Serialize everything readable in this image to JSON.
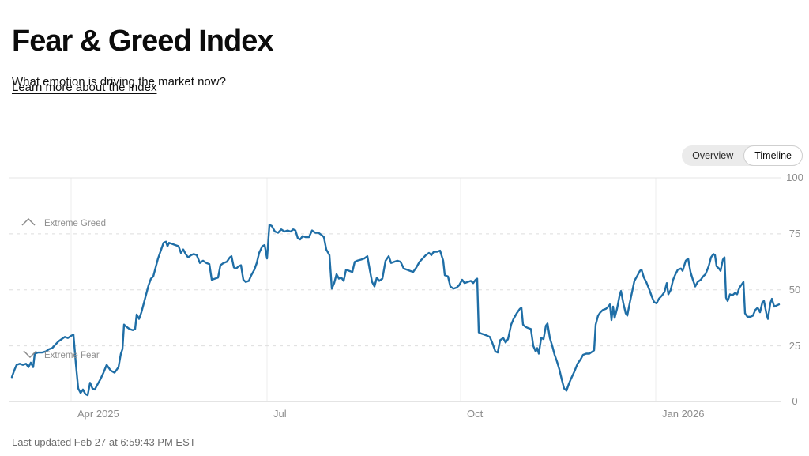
{
  "header": {
    "title": "Fear & Greed Index",
    "subtitle": "What emotion is driving the market now?",
    "link": "Learn more about the index"
  },
  "view_toggle": {
    "options": [
      {
        "label": "Overview",
        "selected": false
      },
      {
        "label": "Timeline",
        "selected": true
      }
    ]
  },
  "footer": {
    "last_updated": "Last updated Feb 27 at 6:59:43 PM EST"
  },
  "colors": {
    "line": "#1f6ea6",
    "grid": "#e4e4e4",
    "tick_text": "#8d8d8d",
    "toggle_bg": "#ebebeb"
  },
  "chart_data": {
    "type": "line",
    "title": "Fear & Greed Index timeline",
    "series_name": "Fear & Greed Index",
    "ylim": [
      0,
      100
    ],
    "y_ticks": [
      100,
      75,
      50,
      25,
      0
    ],
    "x_ticks": [
      "Apr 2025",
      "Jul",
      "Oct",
      "Jan 2026"
    ],
    "band_labels": [
      {
        "label": "Extreme Greed",
        "value": 75,
        "icon": "chevron-up"
      },
      {
        "label": "Extreme Fear",
        "value": 25,
        "icon": "chevron-down"
      }
    ],
    "grid": "horizontal solid at 0 and 100, dashed at 25/50/75, vertical solid at month ticks",
    "legend": "none",
    "x_unit": "px across plot (Mar 2025 - Feb 27 2026, daily)",
    "value_unit": "index 0-100",
    "points": [
      [
        15,
        11
      ],
      [
        18,
        14
      ],
      [
        21,
        16.5
      ],
      [
        25,
        17
      ],
      [
        29,
        16.5
      ],
      [
        33,
        17
      ],
      [
        36,
        15.5
      ],
      [
        39,
        17.5
      ],
      [
        42,
        15.5
      ],
      [
        44,
        21.5
      ],
      [
        48,
        22
      ],
      [
        53,
        22
      ],
      [
        58,
        22.5
      ],
      [
        62,
        23.5
      ],
      [
        66,
        24
      ],
      [
        70,
        25.5
      ],
      [
        74,
        27
      ],
      [
        78,
        28
      ],
      [
        82,
        29
      ],
      [
        86,
        28.5
      ],
      [
        90,
        29.5
      ],
      [
        93,
        30
      ],
      [
        96,
        17
      ],
      [
        99,
        6
      ],
      [
        102,
        4
      ],
      [
        105,
        5.5
      ],
      [
        108,
        3.5
      ],
      [
        111,
        3
      ],
      [
        114,
        8.5
      ],
      [
        117,
        6
      ],
      [
        120,
        5.5
      ],
      [
        123,
        7.5
      ],
      [
        127,
        10
      ],
      [
        131,
        13
      ],
      [
        135,
        16.5
      ],
      [
        140,
        14
      ],
      [
        145,
        13
      ],
      [
        150,
        15.5
      ],
      [
        153,
        21.5
      ],
      [
        155,
        23.5
      ],
      [
        157,
        34.5
      ],
      [
        160,
        33.5
      ],
      [
        164,
        32.5
      ],
      [
        168,
        32
      ],
      [
        171,
        32.5
      ],
      [
        173,
        39
      ],
      [
        176,
        37
      ],
      [
        179,
        40
      ],
      [
        182,
        44
      ],
      [
        185,
        48
      ],
      [
        188,
        52
      ],
      [
        191,
        55
      ],
      [
        194,
        56
      ],
      [
        197,
        60
      ],
      [
        200,
        64
      ],
      [
        204,
        68
      ],
      [
        207,
        71
      ],
      [
        210,
        71.5
      ],
      [
        212,
        69.5
      ],
      [
        214,
        71
      ],
      [
        218,
        70.5
      ],
      [
        222,
        70
      ],
      [
        226,
        69.5
      ],
      [
        229,
        66.5
      ],
      [
        232,
        68
      ],
      [
        235,
        66
      ],
      [
        238,
        64.5
      ],
      [
        242,
        65.5
      ],
      [
        245,
        66
      ],
      [
        249,
        65.5
      ],
      [
        253,
        62
      ],
      [
        257,
        63
      ],
      [
        261,
        62
      ],
      [
        265,
        61.5
      ],
      [
        268,
        54.5
      ],
      [
        272,
        55
      ],
      [
        276,
        55.5
      ],
      [
        279,
        61
      ],
      [
        283,
        62
      ],
      [
        287,
        62.5
      ],
      [
        291,
        64.5
      ],
      [
        293,
        65
      ],
      [
        296,
        60
      ],
      [
        299,
        59.5
      ],
      [
        302,
        60.5
      ],
      [
        305,
        61
      ],
      [
        308,
        54.5
      ],
      [
        311,
        53.5
      ],
      [
        315,
        54
      ],
      [
        318,
        56.5
      ],
      [
        322,
        59
      ],
      [
        325,
        62
      ],
      [
        328,
        66.5
      ],
      [
        332,
        69.5
      ],
      [
        335,
        70
      ],
      [
        338,
        64
      ],
      [
        341,
        79
      ],
      [
        344,
        78.5
      ],
      [
        348,
        76
      ],
      [
        352,
        75.5
      ],
      [
        356,
        77
      ],
      [
        360,
        76
      ],
      [
        364,
        76.5
      ],
      [
        368,
        76
      ],
      [
        371,
        77
      ],
      [
        374,
        76.5
      ],
      [
        377,
        73
      ],
      [
        380,
        72.5
      ],
      [
        383,
        74
      ],
      [
        387,
        73.5
      ],
      [
        391,
        73.5
      ],
      [
        395,
        76.5
      ],
      [
        399,
        75.5
      ],
      [
        403,
        75.5
      ],
      [
        407,
        74.5
      ],
      [
        410,
        73.5
      ],
      [
        413,
        68
      ],
      [
        417,
        65.5
      ],
      [
        420,
        50.5
      ],
      [
        423,
        53
      ],
      [
        426,
        57
      ],
      [
        429,
        55
      ],
      [
        432,
        55.5
      ],
      [
        435,
        54
      ],
      [
        438,
        59
      ],
      [
        442,
        58.5
      ],
      [
        446,
        58
      ],
      [
        449,
        62.5
      ],
      [
        452,
        63
      ],
      [
        457,
        63.5
      ],
      [
        461,
        64
      ],
      [
        465,
        65
      ],
      [
        468,
        59
      ],
      [
        471,
        53.5
      ],
      [
        474,
        51.5
      ],
      [
        477,
        55.5
      ],
      [
        480,
        54
      ],
      [
        484,
        55
      ],
      [
        488,
        63
      ],
      [
        492,
        65
      ],
      [
        495,
        62
      ],
      [
        499,
        62.5
      ],
      [
        503,
        63
      ],
      [
        507,
        62.5
      ],
      [
        511,
        59.5
      ],
      [
        515,
        59
      ],
      [
        519,
        58.5
      ],
      [
        523,
        58
      ],
      [
        527,
        60
      ],
      [
        531,
        62.5
      ],
      [
        535,
        64
      ],
      [
        539,
        65.5
      ],
      [
        543,
        66.5
      ],
      [
        546,
        65.5
      ],
      [
        549,
        67
      ],
      [
        553,
        67
      ],
      [
        557,
        67.5
      ],
      [
        561,
        63
      ],
      [
        563,
        56.5
      ],
      [
        567,
        56
      ],
      [
        570,
        51.5
      ],
      [
        574,
        50.5
      ],
      [
        578,
        51
      ],
      [
        581,
        52
      ],
      [
        585,
        54.5
      ],
      [
        588,
        53
      ],
      [
        592,
        53.5
      ],
      [
        596,
        54
      ],
      [
        599,
        53
      ],
      [
        602,
        54.5
      ],
      [
        604,
        55
      ],
      [
        606,
        31
      ],
      [
        609,
        30.5
      ],
      [
        613,
        30
      ],
      [
        617,
        29.5
      ],
      [
        620,
        29
      ],
      [
        623,
        26.5
      ],
      [
        627,
        22.5
      ],
      [
        630,
        22
      ],
      [
        633,
        27.5
      ],
      [
        637,
        28.5
      ],
      [
        640,
        26.5
      ],
      [
        643,
        28
      ],
      [
        647,
        34.5
      ],
      [
        650,
        37
      ],
      [
        654,
        39.5
      ],
      [
        658,
        41.5
      ],
      [
        660,
        42
      ],
      [
        662,
        34.5
      ],
      [
        665,
        33.5
      ],
      [
        668,
        33
      ],
      [
        672,
        32.5
      ],
      [
        675,
        25
      ],
      [
        678,
        22.5
      ],
      [
        680,
        24
      ],
      [
        682,
        21.5
      ],
      [
        685,
        28.5
      ],
      [
        688,
        28
      ],
      [
        691,
        34
      ],
      [
        693,
        35
      ],
      [
        696,
        28.5
      ],
      [
        699,
        25
      ],
      [
        702,
        21
      ],
      [
        705,
        18
      ],
      [
        708,
        14.5
      ],
      [
        711,
        10
      ],
      [
        714,
        6
      ],
      [
        717,
        5
      ],
      [
        720,
        8
      ],
      [
        723,
        10.5
      ],
      [
        727,
        13.5
      ],
      [
        731,
        17
      ],
      [
        735,
        19
      ],
      [
        738,
        21
      ],
      [
        742,
        21.5
      ],
      [
        746,
        21.5
      ],
      [
        750,
        22.5
      ],
      [
        752,
        23
      ],
      [
        754,
        34.5
      ],
      [
        757,
        38.5
      ],
      [
        760,
        40
      ],
      [
        763,
        41
      ],
      [
        767,
        41.5
      ],
      [
        770,
        42.5
      ],
      [
        772,
        43.5
      ],
      [
        774,
        36.5
      ],
      [
        776,
        42.5
      ],
      [
        778,
        37.5
      ],
      [
        781,
        41.5
      ],
      [
        784,
        47
      ],
      [
        786,
        49.5
      ],
      [
        789,
        44
      ],
      [
        792,
        39.5
      ],
      [
        794,
        38.5
      ],
      [
        797,
        44
      ],
      [
        800,
        49
      ],
      [
        803,
        54
      ],
      [
        807,
        56.5
      ],
      [
        810,
        58.5
      ],
      [
        812,
        59
      ],
      [
        815,
        55.5
      ],
      [
        818,
        53.5
      ],
      [
        822,
        50
      ],
      [
        825,
        47
      ],
      [
        828,
        44.5
      ],
      [
        831,
        44
      ],
      [
        834,
        46
      ],
      [
        838,
        47.5
      ],
      [
        841,
        49
      ],
      [
        844,
        53
      ],
      [
        846,
        48
      ],
      [
        849,
        50
      ],
      [
        852,
        54.5
      ],
      [
        855,
        57
      ],
      [
        858,
        59
      ],
      [
        862,
        59.5
      ],
      [
        864,
        58.5
      ],
      [
        868,
        63
      ],
      [
        871,
        64
      ],
      [
        874,
        58
      ],
      [
        877,
        54.5
      ],
      [
        880,
        51.5
      ],
      [
        883,
        53.5
      ],
      [
        887,
        54.5
      ],
      [
        890,
        56
      ],
      [
        893,
        57
      ],
      [
        897,
        60.5
      ],
      [
        900,
        64.5
      ],
      [
        903,
        66
      ],
      [
        905,
        65.5
      ],
      [
        907,
        60.5
      ],
      [
        910,
        59.5
      ],
      [
        912,
        58.5
      ],
      [
        915,
        63.5
      ],
      [
        917,
        64.5
      ],
      [
        919,
        46.5
      ],
      [
        921,
        45
      ],
      [
        924,
        48
      ],
      [
        927,
        47.5
      ],
      [
        930,
        48.5
      ],
      [
        933,
        48
      ],
      [
        936,
        51
      ],
      [
        939,
        52.5
      ],
      [
        941,
        53.5
      ],
      [
        943,
        39.5
      ],
      [
        946,
        38
      ],
      [
        950,
        38
      ],
      [
        953,
        38.5
      ],
      [
        956,
        41
      ],
      [
        959,
        42
      ],
      [
        962,
        40
      ],
      [
        965,
        44.5
      ],
      [
        967,
        45
      ],
      [
        970,
        39.5
      ],
      [
        972,
        37
      ],
      [
        975,
        44
      ],
      [
        977,
        46
      ],
      [
        980,
        42.5
      ],
      [
        983,
        43
      ],
      [
        986,
        43.5
      ]
    ]
  }
}
